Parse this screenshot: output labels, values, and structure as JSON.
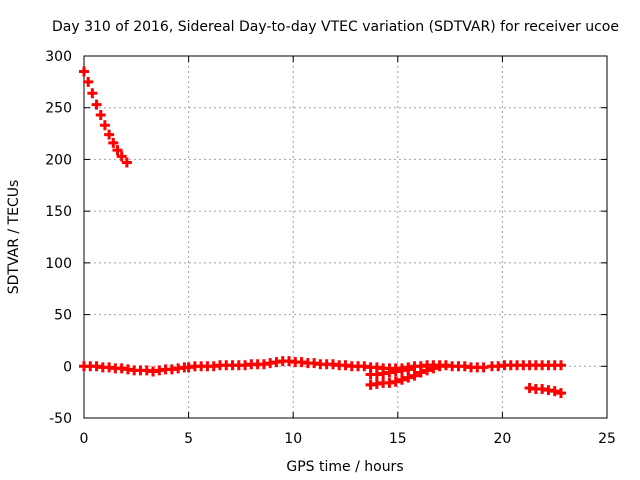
{
  "chart_data": {
    "type": "scatter",
    "title": "Day 310 of 2016, Sidereal Day-to-day VTEC variation (SDTVAR) for receiver ucoe",
    "xlabel": "GPS time / hours",
    "ylabel": "SDTVAR / TECUs",
    "xlim": [
      0,
      25
    ],
    "ylim": [
      -50,
      300
    ],
    "xticks": [
      "0",
      "5",
      "10",
      "15",
      "20",
      "25"
    ],
    "yticks": [
      "-50",
      "0",
      "50",
      "100",
      "150",
      "200",
      "250",
      "300"
    ],
    "grid": true,
    "colors": {
      "series": "#ff0000"
    },
    "series": [
      {
        "points": [
          [
            0.0,
            285
          ],
          [
            0.2,
            275
          ],
          [
            0.4,
            264
          ],
          [
            0.6,
            253
          ],
          [
            0.8,
            243
          ],
          [
            1.0,
            233
          ],
          [
            1.2,
            224
          ],
          [
            1.4,
            216
          ],
          [
            1.6,
            209
          ],
          [
            1.8,
            203
          ],
          [
            2.05,
            197
          ],
          [
            0.0,
            0
          ],
          [
            0.3,
            0
          ],
          [
            0.6,
            0
          ],
          [
            0.9,
            -1
          ],
          [
            1.2,
            -1
          ],
          [
            1.5,
            -2
          ],
          [
            1.8,
            -2
          ],
          [
            2.1,
            -3
          ],
          [
            2.4,
            -4
          ],
          [
            2.7,
            -4
          ],
          [
            3.0,
            -4
          ],
          [
            3.3,
            -5
          ],
          [
            3.6,
            -4
          ],
          [
            3.9,
            -3
          ],
          [
            4.2,
            -3
          ],
          [
            4.5,
            -2
          ],
          [
            4.8,
            -1
          ],
          [
            5.0,
            -1
          ],
          [
            5.3,
            0
          ],
          [
            5.6,
            0
          ],
          [
            5.9,
            0
          ],
          [
            6.2,
            0
          ],
          [
            6.5,
            1
          ],
          [
            6.8,
            1
          ],
          [
            7.1,
            1
          ],
          [
            7.4,
            1
          ],
          [
            7.7,
            1
          ],
          [
            8.0,
            2
          ],
          [
            8.3,
            2
          ],
          [
            8.6,
            2
          ],
          [
            8.9,
            3
          ],
          [
            9.2,
            4
          ],
          [
            9.5,
            5
          ],
          [
            9.8,
            5
          ],
          [
            10.1,
            4
          ],
          [
            10.4,
            4
          ],
          [
            10.7,
            3
          ],
          [
            11.0,
            3
          ],
          [
            11.3,
            2
          ],
          [
            11.6,
            2
          ],
          [
            11.9,
            2
          ],
          [
            12.2,
            1
          ],
          [
            12.5,
            1
          ],
          [
            12.8,
            0
          ],
          [
            13.1,
            0
          ],
          [
            13.4,
            0
          ],
          [
            13.7,
            -1
          ],
          [
            14.0,
            -1
          ],
          [
            14.3,
            -2
          ],
          [
            14.6,
            -2
          ],
          [
            14.9,
            -2
          ],
          [
            15.2,
            -2
          ],
          [
            15.5,
            -1
          ],
          [
            15.8,
            0
          ],
          [
            16.1,
            0
          ],
          [
            16.4,
            1
          ],
          [
            16.7,
            1
          ],
          [
            17.0,
            1
          ],
          [
            17.3,
            1
          ],
          [
            17.6,
            0
          ],
          [
            17.9,
            0
          ],
          [
            18.2,
            0
          ],
          [
            18.5,
            -1
          ],
          [
            18.8,
            -1
          ],
          [
            19.1,
            -1
          ],
          [
            13.7,
            -8
          ],
          [
            14.0,
            -8
          ],
          [
            14.3,
            -7
          ],
          [
            14.6,
            -6
          ],
          [
            14.9,
            -5
          ],
          [
            15.2,
            -4
          ],
          [
            15.5,
            -3
          ],
          [
            13.7,
            -18
          ],
          [
            14.0,
            -17
          ],
          [
            14.3,
            -16
          ],
          [
            14.6,
            -16
          ],
          [
            14.9,
            -15
          ],
          [
            15.2,
            -13
          ],
          [
            15.5,
            -11
          ],
          [
            15.8,
            -9
          ],
          [
            16.1,
            -6
          ],
          [
            16.4,
            -4
          ],
          [
            16.7,
            -2
          ],
          [
            17.0,
            0
          ],
          [
            19.5,
            0
          ],
          [
            19.8,
            0
          ],
          [
            20.1,
            1
          ],
          [
            20.4,
            1
          ],
          [
            20.7,
            1
          ],
          [
            21.0,
            1
          ],
          [
            21.3,
            1
          ],
          [
            21.6,
            1
          ],
          [
            21.9,
            1
          ],
          [
            22.2,
            1
          ],
          [
            22.5,
            1
          ],
          [
            22.8,
            1
          ],
          [
            21.3,
            -21
          ],
          [
            21.6,
            -22
          ],
          [
            21.9,
            -22
          ],
          [
            22.2,
            -23
          ],
          [
            22.5,
            -24
          ],
          [
            22.8,
            -26
          ]
        ]
      }
    ]
  }
}
